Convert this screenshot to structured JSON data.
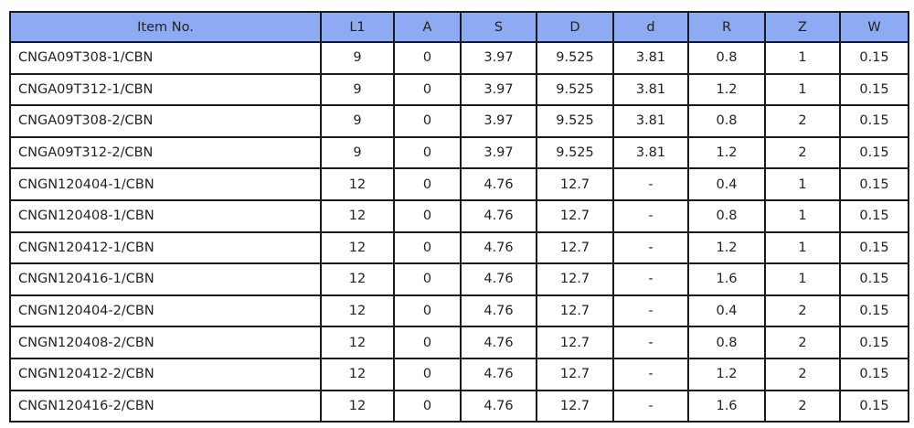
{
  "table": {
    "header": [
      "Item No.",
      "L1",
      "A",
      "S",
      "D",
      "d",
      "R",
      "Z",
      "W"
    ],
    "rows": [
      [
        "CNGA09T308-1/CBN",
        "9",
        "0",
        "3.97",
        "9.525",
        "3.81",
        "0.8",
        "1",
        "0.15"
      ],
      [
        "CNGA09T312-1/CBN",
        "9",
        "0",
        "3.97",
        "9.525",
        "3.81",
        "1.2",
        "1",
        "0.15"
      ],
      [
        "CNGA09T308-2/CBN",
        "9",
        "0",
        "3.97",
        "9.525",
        "3.81",
        "0.8",
        "2",
        "0.15"
      ],
      [
        "CNGA09T312-2/CBN",
        "9",
        "0",
        "3.97",
        "9.525",
        "3.81",
        "1.2",
        "2",
        "0.15"
      ],
      [
        "CNGN120404-1/CBN",
        "12",
        "0",
        "4.76",
        "12.7",
        "-",
        "0.4",
        "1",
        "0.15"
      ],
      [
        "CNGN120408-1/CBN",
        "12",
        "0",
        "4.76",
        "12.7",
        "-",
        "0.8",
        "1",
        "0.15"
      ],
      [
        "CNGN120412-1/CBN",
        "12",
        "0",
        "4.76",
        "12.7",
        "-",
        "1.2",
        "1",
        "0.15"
      ],
      [
        "CNGN120416-1/CBN",
        "12",
        "0",
        "4.76",
        "12.7",
        "-",
        "1.6",
        "1",
        "0.15"
      ],
      [
        "CNGN120404-2/CBN",
        "12",
        "0",
        "4.76",
        "12.7",
        "-",
        "0.4",
        "2",
        "0.15"
      ],
      [
        "CNGN120408-2/CBN",
        "12",
        "0",
        "4.76",
        "12.7",
        "-",
        "0.8",
        "2",
        "0.15"
      ],
      [
        "CNGN120412-2/CBN",
        "12",
        "0",
        "4.76",
        "12.7",
        "-",
        "1.2",
        "2",
        "0.15"
      ],
      [
        "CNGN120416-2/CBN",
        "12",
        "0",
        "4.76",
        "12.7",
        "-",
        "1.6",
        "2",
        "0.15"
      ]
    ]
  }
}
